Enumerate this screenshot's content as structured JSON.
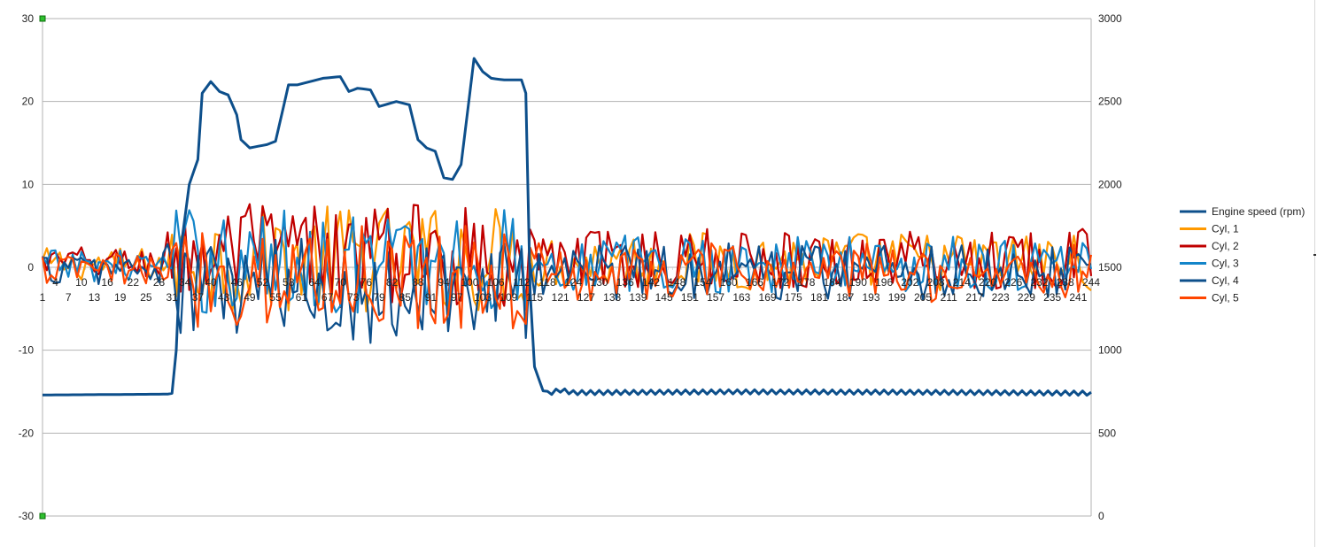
{
  "chart_data": {
    "type": "line",
    "x_start": 1,
    "x_end": 244,
    "y_left": {
      "min": -30,
      "max": 30,
      "ticks": [
        -30,
        -20,
        -10,
        0,
        10,
        20,
        30
      ]
    },
    "y_right": {
      "min": 0,
      "max": 3000,
      "ticks": [
        0,
        500,
        1000,
        1500,
        2000,
        2500,
        3000
      ]
    },
    "x_tick_labels_lower": [
      1,
      7,
      13,
      19,
      25,
      31,
      37,
      43,
      49,
      55,
      61,
      67,
      73,
      79,
      85,
      91,
      97,
      103,
      109,
      115,
      121,
      127,
      133,
      139,
      145,
      151,
      157,
      163,
      169,
      175,
      181,
      187,
      193,
      199,
      205,
      211,
      217,
      223,
      229,
      235,
      241
    ],
    "x_tick_labels_upper": [
      4,
      10,
      16,
      22,
      28,
      34,
      40,
      46,
      52,
      58,
      64,
      70,
      76,
      82,
      88,
      94,
      100,
      106,
      112,
      118,
      124,
      130,
      136,
      142,
      148,
      154,
      160,
      166,
      172,
      178,
      184,
      190,
      196,
      202,
      208,
      214,
      220,
      226,
      232,
      238,
      244
    ],
    "grid": "horizontal",
    "legend_position": "right",
    "series": [
      {
        "name": "Engine speed (rpm)",
        "axis": "right",
        "color": "#0d4f8b",
        "values": [
          [
            1,
            730
          ],
          [
            30,
            735
          ],
          [
            31,
            740
          ],
          [
            32,
            1000
          ],
          [
            33,
            1600
          ],
          [
            35,
            2000
          ],
          [
            37,
            2150
          ],
          [
            38,
            2550
          ],
          [
            40,
            2620
          ],
          [
            42,
            2560
          ],
          [
            44,
            2540
          ],
          [
            46,
            2420
          ],
          [
            47,
            2270
          ],
          [
            49,
            2220
          ],
          [
            53,
            2240
          ],
          [
            55,
            2260
          ],
          [
            58,
            2600
          ],
          [
            60,
            2600
          ],
          [
            66,
            2640
          ],
          [
            70,
            2650
          ],
          [
            72,
            2560
          ],
          [
            74,
            2580
          ],
          [
            77,
            2570
          ],
          [
            79,
            2470
          ],
          [
            83,
            2500
          ],
          [
            86,
            2480
          ],
          [
            88,
            2270
          ],
          [
            90,
            2220
          ],
          [
            92,
            2200
          ],
          [
            94,
            2040
          ],
          [
            96,
            2030
          ],
          [
            98,
            2120
          ],
          [
            101,
            2760
          ],
          [
            103,
            2680
          ],
          [
            105,
            2640
          ],
          [
            108,
            2630
          ],
          [
            112,
            2630
          ],
          [
            113,
            2550
          ],
          [
            114,
            1350
          ],
          [
            115,
            900
          ],
          [
            117,
            755
          ],
          [
            118,
            740
          ],
          [
            121,
            760
          ],
          [
            124,
            745
          ],
          [
            160,
            750
          ],
          [
            200,
            748
          ],
          [
            243,
            742
          ],
          [
            244,
            735
          ]
        ]
      },
      {
        "name": "Cyl, 1",
        "axis": "left",
        "color": "#ff9900"
      },
      {
        "name": "Cyl, 2",
        "axis": "left",
        "color": "#c00000"
      },
      {
        "name": "Cyl, 3",
        "axis": "left",
        "color": "#1385c9"
      },
      {
        "name": "Cyl, 4",
        "axis": "left",
        "color": "#0d4f8b"
      },
      {
        "name": "Cyl, 5",
        "axis": "left",
        "color": "#ff4500"
      }
    ]
  }
}
